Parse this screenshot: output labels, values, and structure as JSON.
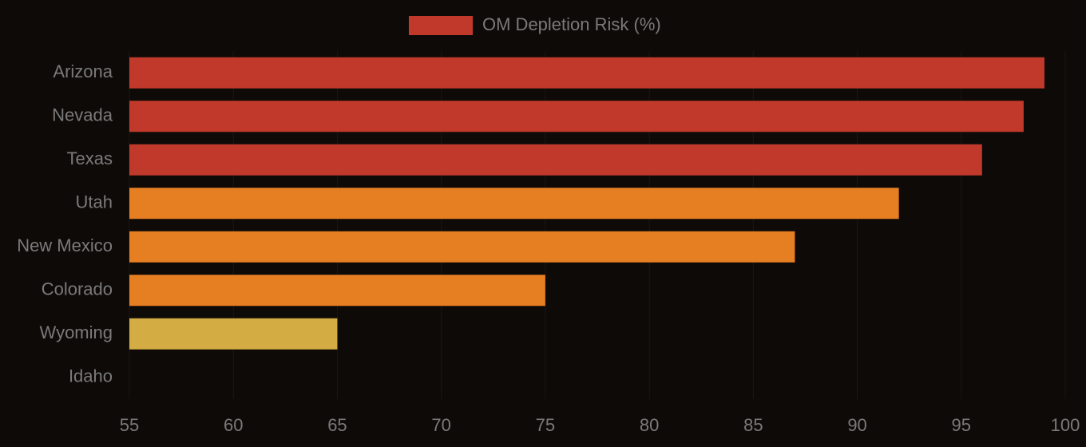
{
  "chart_data": {
    "type": "hbar",
    "categories": [
      "Arizona",
      "Nevada",
      "Texas",
      "Utah",
      "New Mexico",
      "Colorado",
      "Wyoming",
      "Idaho"
    ],
    "series": [
      {
        "name": "OM Depletion Risk (%)",
        "color": "#c0392b",
        "values": [
          99,
          98,
          96,
          92,
          87,
          75,
          65,
          55
        ],
        "bar_colors": [
          "#c0392b",
          "#c0392b",
          "#c0392b",
          "#e67e22",
          "#e67e22",
          "#e67e22",
          "#d4ac44",
          "#d4ac44"
        ]
      }
    ],
    "xlim": [
      55,
      100
    ],
    "xticks": [
      55,
      60,
      65,
      70,
      75,
      80,
      85,
      90,
      95,
      100
    ],
    "grid": true,
    "legend": "top"
  }
}
